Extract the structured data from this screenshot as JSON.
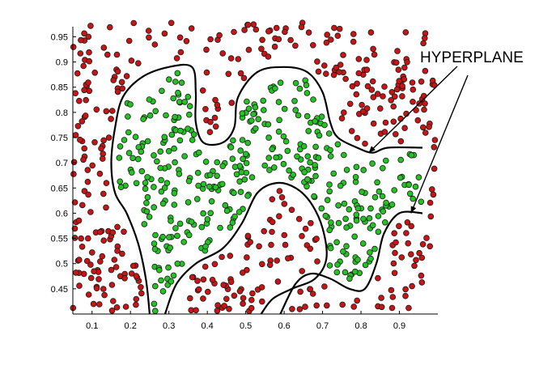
{
  "chart_data": {
    "type": "scatter",
    "title": "",
    "xlabel": "",
    "ylabel": "",
    "xlim": [
      0.05,
      1.0
    ],
    "ylim": [
      0.4,
      0.97
    ],
    "xticks": [
      "0.1",
      "0.2",
      "0.3",
      "0.4",
      "0.5",
      "0.6",
      "0.7",
      "0.8",
      "0.9"
    ],
    "yticks": [
      "0.45",
      "0.5",
      "0.55",
      "0.6",
      "0.65",
      "0.7",
      "0.75",
      "0.8",
      "0.85",
      "0.9",
      "0.95"
    ],
    "grid": false,
    "legend": "none",
    "annotation": {
      "text": "HYPERPLANE",
      "arrow_targets": [
        [
          0.82,
          0.72
        ],
        [
          0.93,
          0.6
        ]
      ]
    },
    "series": [
      {
        "color": "#c81414",
        "count": 430
      },
      {
        "color": "#22c322",
        "count": 390
      }
    ],
    "decision_boundary": [
      [
        [
          0.25,
          0.4
        ],
        [
          0.24,
          0.47
        ],
        [
          0.22,
          0.54
        ],
        [
          0.19,
          0.6
        ],
        [
          0.16,
          0.64
        ],
        [
          0.15,
          0.7
        ],
        [
          0.16,
          0.77
        ],
        [
          0.18,
          0.83
        ],
        [
          0.23,
          0.87
        ],
        [
          0.3,
          0.89
        ],
        [
          0.36,
          0.89
        ],
        [
          0.37,
          0.84
        ],
        [
          0.37,
          0.78
        ],
        [
          0.39,
          0.74
        ],
        [
          0.44,
          0.74
        ],
        [
          0.47,
          0.77
        ],
        [
          0.48,
          0.83
        ],
        [
          0.53,
          0.88
        ],
        [
          0.6,
          0.89
        ],
        [
          0.66,
          0.88
        ],
        [
          0.7,
          0.84
        ],
        [
          0.72,
          0.78
        ],
        [
          0.74,
          0.75
        ],
        [
          0.79,
          0.73
        ],
        [
          0.83,
          0.72
        ],
        [
          0.87,
          0.73
        ],
        [
          0.96,
          0.73
        ]
      ],
      [
        [
          0.29,
          0.4
        ],
        [
          0.32,
          0.46
        ],
        [
          0.37,
          0.5
        ],
        [
          0.44,
          0.53
        ],
        [
          0.49,
          0.58
        ],
        [
          0.53,
          0.64
        ],
        [
          0.58,
          0.66
        ],
        [
          0.63,
          0.65
        ],
        [
          0.67,
          0.62
        ],
        [
          0.7,
          0.57
        ],
        [
          0.71,
          0.51
        ],
        [
          0.68,
          0.47
        ],
        [
          0.62,
          0.45
        ],
        [
          0.57,
          0.43
        ],
        [
          0.54,
          0.4
        ]
      ],
      [
        [
          0.59,
          0.4
        ],
        [
          0.63,
          0.46
        ],
        [
          0.67,
          0.48
        ],
        [
          0.72,
          0.47
        ],
        [
          0.77,
          0.45
        ],
        [
          0.81,
          0.45
        ],
        [
          0.84,
          0.5
        ],
        [
          0.86,
          0.56
        ],
        [
          0.9,
          0.6
        ],
        [
          0.96,
          0.6
        ]
      ]
    ]
  }
}
